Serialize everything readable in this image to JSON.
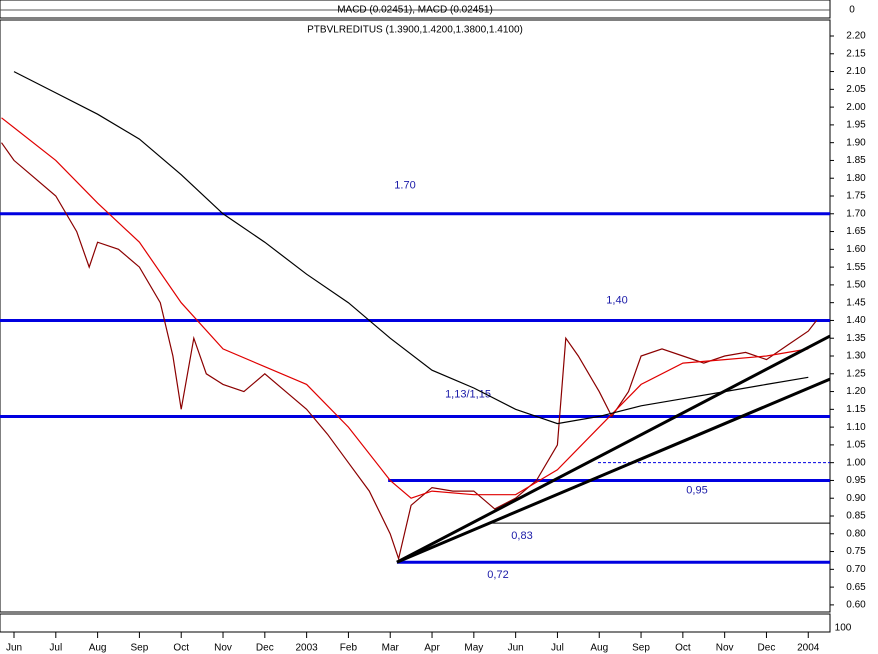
{
  "chart_data": {
    "type": "line",
    "title": "PTBVLREDITUS (1.3900,1.4200,1.3800,1.4100)",
    "indicator_title": "MACD (0.02451), MACD (0.02451)",
    "indicator_tick": "0",
    "oscillator_tick": "100",
    "xlim": [
      -0.335,
      19.52
    ],
    "ylim": [
      0.58,
      2.245
    ],
    "xticks": [
      {
        "value": 0,
        "label": "Jun"
      },
      {
        "value": 1,
        "label": "Jul"
      },
      {
        "value": 2,
        "label": "Aug"
      },
      {
        "value": 3,
        "label": "Sep"
      },
      {
        "value": 4,
        "label": "Oct"
      },
      {
        "value": 5,
        "label": "Nov"
      },
      {
        "value": 6,
        "label": "Dec"
      },
      {
        "value": 7,
        "label": "2003"
      },
      {
        "value": 8,
        "label": "Feb"
      },
      {
        "value": 9,
        "label": "Mar"
      },
      {
        "value": 10,
        "label": "Apr"
      },
      {
        "value": 11,
        "label": "May"
      },
      {
        "value": 12,
        "label": "Jun"
      },
      {
        "value": 13,
        "label": "Jul"
      },
      {
        "value": 14,
        "label": "Aug"
      },
      {
        "value": 15,
        "label": "Sep"
      },
      {
        "value": 16,
        "label": "Oct"
      },
      {
        "value": 17,
        "label": "Nov"
      },
      {
        "value": 18,
        "label": "Dec"
      },
      {
        "value": 19,
        "label": "2004"
      }
    ],
    "yticks": [
      {
        "value": 0.6,
        "label": "0.60"
      },
      {
        "value": 0.65,
        "label": "0.65"
      },
      {
        "value": 0.7,
        "label": "0.70"
      },
      {
        "value": 0.75,
        "label": "0.75"
      },
      {
        "value": 0.8,
        "label": "0.80"
      },
      {
        "value": 0.85,
        "label": "0.85"
      },
      {
        "value": 0.9,
        "label": "0.90"
      },
      {
        "value": 0.95,
        "label": "0.95"
      },
      {
        "value": 1.0,
        "label": "1.00"
      },
      {
        "value": 1.05,
        "label": "1.05"
      },
      {
        "value": 1.1,
        "label": "1.10"
      },
      {
        "value": 1.15,
        "label": "1.15"
      },
      {
        "value": 1.2,
        "label": "1.20"
      },
      {
        "value": 1.25,
        "label": "1.25"
      },
      {
        "value": 1.3,
        "label": "1.30"
      },
      {
        "value": 1.35,
        "label": "1.35"
      },
      {
        "value": 1.4,
        "label": "1.40"
      },
      {
        "value": 1.45,
        "label": "1.45"
      },
      {
        "value": 1.5,
        "label": "1.50"
      },
      {
        "value": 1.55,
        "label": "1.55"
      },
      {
        "value": 1.6,
        "label": "1.60"
      },
      {
        "value": 1.65,
        "label": "1.65"
      },
      {
        "value": 1.7,
        "label": "1.70"
      },
      {
        "value": 1.75,
        "label": "1.75"
      },
      {
        "value": 1.8,
        "label": "1.80"
      },
      {
        "value": 1.85,
        "label": "1.85"
      },
      {
        "value": 1.9,
        "label": "1.90"
      },
      {
        "value": 1.95,
        "label": "1.95"
      },
      {
        "value": 2.0,
        "label": "2.00"
      },
      {
        "value": 2.05,
        "label": "2.05"
      },
      {
        "value": 2.1,
        "label": "2.10"
      },
      {
        "value": 2.15,
        "label": "2.15"
      },
      {
        "value": 2.2,
        "label": "2.20"
      }
    ],
    "series": [
      {
        "color": "#8b0000",
        "x": [
          -0.3,
          0,
          0.5,
          1,
          1.5,
          1.8,
          2,
          2.5,
          3,
          3.5,
          3.8,
          4,
          4.3,
          4.6,
          5,
          5.5,
          6,
          6.5,
          7,
          7.5,
          8,
          8.5,
          9,
          9.2,
          9.5,
          10,
          10.5,
          11,
          11.5,
          12,
          12.5,
          13,
          13.2,
          13.5,
          14,
          14.3,
          14.7,
          15,
          15.5,
          16,
          16.5,
          17,
          17.5,
          18,
          18.5,
          19,
          19.2
        ],
        "values": [
          1.9,
          1.85,
          1.8,
          1.75,
          1.65,
          1.55,
          1.62,
          1.6,
          1.55,
          1.45,
          1.3,
          1.15,
          1.35,
          1.25,
          1.22,
          1.2,
          1.25,
          1.2,
          1.15,
          1.08,
          1.0,
          0.92,
          0.8,
          0.73,
          0.88,
          0.93,
          0.92,
          0.92,
          0.87,
          0.9,
          0.95,
          1.05,
          1.35,
          1.3,
          1.2,
          1.13,
          1.2,
          1.3,
          1.32,
          1.3,
          1.28,
          1.3,
          1.31,
          1.29,
          1.33,
          1.37,
          1.4
        ]
      },
      {
        "color": "#e00000",
        "x": [
          -0.3,
          1,
          2,
          3,
          4,
          5,
          6,
          7,
          8,
          9,
          9.5,
          10,
          11,
          12,
          13,
          14,
          15,
          16,
          17,
          18,
          19
        ],
        "values": [
          1.97,
          1.85,
          1.73,
          1.62,
          1.45,
          1.32,
          1.27,
          1.22,
          1.1,
          0.95,
          0.9,
          0.92,
          0.91,
          0.91,
          0.98,
          1.1,
          1.22,
          1.28,
          1.29,
          1.3,
          1.32
        ]
      },
      {
        "color": "#000000",
        "x": [
          0,
          1,
          2,
          3,
          4,
          5,
          6,
          7,
          8,
          9,
          10,
          11,
          12,
          13,
          14,
          15,
          16,
          17,
          18,
          19
        ],
        "values": [
          2.1,
          2.04,
          1.98,
          1.91,
          1.81,
          1.7,
          1.62,
          1.53,
          1.45,
          1.35,
          1.26,
          1.21,
          1.15,
          1.11,
          1.13,
          1.16,
          1.18,
          1.2,
          1.22,
          1.24
        ]
      }
    ],
    "levels": [
      {
        "value": 1.7,
        "label": "1.70",
        "style": "thick"
      },
      {
        "value": 1.4,
        "label": "1,40",
        "style": "thick"
      },
      {
        "value": 1.13,
        "label": "1,13/1,15",
        "style": "thick"
      },
      {
        "value": 1.0,
        "x_start": 13.97,
        "style": "dashed"
      },
      {
        "value": 0.95,
        "x_start": 8.95,
        "label": "0,95",
        "style": "thick"
      },
      {
        "value": 0.83,
        "x_start": 11.39,
        "label": "0,83",
        "style": "thin"
      },
      {
        "value": 0.72,
        "x_start": 9.16,
        "label": "0,72",
        "style": "thick"
      }
    ],
    "level_color": "#0000e0",
    "trendlines": [
      {
        "x": [
          9.16,
          19.52
        ],
        "y": [
          0.72,
          1.356
        ]
      },
      {
        "x": [
          9.16,
          19.52
        ],
        "y": [
          0.72,
          1.235
        ]
      }
    ]
  }
}
